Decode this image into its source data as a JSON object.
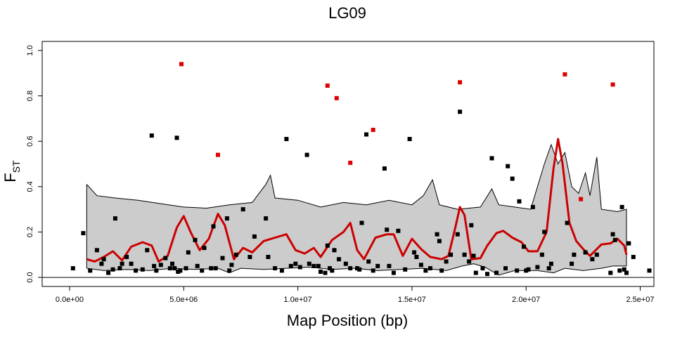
{
  "chart_data": {
    "type": "scatter",
    "title": "LG09",
    "xlabel": "Map Position (bp)",
    "ylabel_main": "F",
    "ylabel_sub": "ST",
    "xlim": [
      -1200000,
      25600000
    ],
    "ylim": [
      -0.04,
      1.04
    ],
    "x_ticks": [
      0,
      5000000,
      10000000,
      15000000,
      20000000,
      25000000
    ],
    "x_tick_labels": [
      "0.0e+00",
      "5.0e+06",
      "1.0e+07",
      "1.5e+07",
      "2.0e+07",
      "2.5e+07"
    ],
    "y_ticks": [
      0.0,
      0.2,
      0.4,
      0.6,
      0.8,
      1.0
    ],
    "y_tick_labels": [
      "0.0",
      "0.2",
      "0.4",
      "0.6",
      "0.8",
      "1.0"
    ],
    "hline": 0,
    "grid": false,
    "colors": {
      "normal": "#000000",
      "outlier": "#dd0000",
      "smooth": "#cc0000",
      "band": "#cccccc"
    },
    "band": {
      "upper": [
        [
          750000,
          0.41
        ],
        [
          1200000,
          0.36
        ],
        [
          2000000,
          0.35
        ],
        [
          3000000,
          0.34
        ],
        [
          4000000,
          0.325
        ],
        [
          5000000,
          0.31
        ],
        [
          6000000,
          0.305
        ],
        [
          7000000,
          0.32
        ],
        [
          8000000,
          0.33
        ],
        [
          8600000,
          0.41
        ],
        [
          8800000,
          0.45
        ],
        [
          9000000,
          0.35
        ],
        [
          10000000,
          0.34
        ],
        [
          11000000,
          0.31
        ],
        [
          12000000,
          0.33
        ],
        [
          13000000,
          0.32
        ],
        [
          14000000,
          0.34
        ],
        [
          15000000,
          0.32
        ],
        [
          15500000,
          0.36
        ],
        [
          15900000,
          0.43
        ],
        [
          16200000,
          0.32
        ],
        [
          17000000,
          0.3
        ],
        [
          18000000,
          0.31
        ],
        [
          18500000,
          0.39
        ],
        [
          18800000,
          0.32
        ],
        [
          19500000,
          0.31
        ],
        [
          20200000,
          0.3
        ],
        [
          20800000,
          0.5
        ],
        [
          21100000,
          0.585
        ],
        [
          21400000,
          0.5
        ],
        [
          21700000,
          0.55
        ],
        [
          22000000,
          0.4
        ],
        [
          22300000,
          0.37
        ],
        [
          22600000,
          0.46
        ],
        [
          22800000,
          0.36
        ],
        [
          23100000,
          0.53
        ],
        [
          23300000,
          0.3
        ],
        [
          24000000,
          0.29
        ],
        [
          24400000,
          0.3
        ]
      ],
      "lower": [
        [
          750000,
          0.04
        ],
        [
          1500000,
          0.03
        ],
        [
          2500000,
          0.035
        ],
        [
          3500000,
          0.03
        ],
        [
          4500000,
          0.04
        ],
        [
          5500000,
          0.035
        ],
        [
          6500000,
          0.04
        ],
        [
          7000000,
          0.02
        ],
        [
          7500000,
          0.04
        ],
        [
          8500000,
          0.035
        ],
        [
          9500000,
          0.04
        ],
        [
          10500000,
          0.045
        ],
        [
          11500000,
          0.035
        ],
        [
          12500000,
          0.04
        ],
        [
          13500000,
          0.03
        ],
        [
          14500000,
          0.035
        ],
        [
          15500000,
          0.04
        ],
        [
          16500000,
          0.03
        ],
        [
          17200000,
          0.05
        ],
        [
          17700000,
          0.06
        ],
        [
          18200000,
          0.045
        ],
        [
          18800000,
          0.01
        ],
        [
          19500000,
          0.03
        ],
        [
          20500000,
          0.03
        ],
        [
          21200000,
          0.02
        ],
        [
          21700000,
          0.04
        ],
        [
          22500000,
          0.03
        ],
        [
          23300000,
          0.04
        ],
        [
          23800000,
          0.05
        ],
        [
          24400000,
          0.05
        ]
      ]
    },
    "smooth": [
      [
        750000,
        0.08
      ],
      [
        1100000,
        0.07
      ],
      [
        1500000,
        0.09
      ],
      [
        1900000,
        0.115
      ],
      [
        2300000,
        0.075
      ],
      [
        2700000,
        0.135
      ],
      [
        3200000,
        0.155
      ],
      [
        3600000,
        0.14
      ],
      [
        3900000,
        0.07
      ],
      [
        4300000,
        0.095
      ],
      [
        4700000,
        0.22
      ],
      [
        5000000,
        0.27
      ],
      [
        5300000,
        0.2
      ],
      [
        5700000,
        0.12
      ],
      [
        6100000,
        0.17
      ],
      [
        6500000,
        0.28
      ],
      [
        6800000,
        0.23
      ],
      [
        7200000,
        0.08
      ],
      [
        7600000,
        0.13
      ],
      [
        8000000,
        0.11
      ],
      [
        8500000,
        0.16
      ],
      [
        9000000,
        0.175
      ],
      [
        9500000,
        0.19
      ],
      [
        9900000,
        0.12
      ],
      [
        10300000,
        0.105
      ],
      [
        10700000,
        0.13
      ],
      [
        11000000,
        0.09
      ],
      [
        11500000,
        0.165
      ],
      [
        12000000,
        0.2
      ],
      [
        12300000,
        0.24
      ],
      [
        12600000,
        0.12
      ],
      [
        12900000,
        0.08
      ],
      [
        13400000,
        0.175
      ],
      [
        13900000,
        0.19
      ],
      [
        14200000,
        0.19
      ],
      [
        14600000,
        0.095
      ],
      [
        15000000,
        0.17
      ],
      [
        15400000,
        0.125
      ],
      [
        15800000,
        0.09
      ],
      [
        16300000,
        0.08
      ],
      [
        16600000,
        0.095
      ],
      [
        16900000,
        0.22
      ],
      [
        17100000,
        0.31
      ],
      [
        17300000,
        0.275
      ],
      [
        17600000,
        0.08
      ],
      [
        18000000,
        0.085
      ],
      [
        18300000,
        0.14
      ],
      [
        18700000,
        0.195
      ],
      [
        19000000,
        0.205
      ],
      [
        19400000,
        0.175
      ],
      [
        19800000,
        0.155
      ],
      [
        20100000,
        0.115
      ],
      [
        20500000,
        0.115
      ],
      [
        20900000,
        0.2
      ],
      [
        21200000,
        0.48
      ],
      [
        21400000,
        0.61
      ],
      [
        21600000,
        0.5
      ],
      [
        21900000,
        0.24
      ],
      [
        22200000,
        0.16
      ],
      [
        22500000,
        0.125
      ],
      [
        22800000,
        0.095
      ],
      [
        23300000,
        0.145
      ],
      [
        23700000,
        0.15
      ],
      [
        24000000,
        0.17
      ],
      [
        24300000,
        0.14
      ],
      [
        24400000,
        0.1
      ]
    ],
    "points_normal": [
      [
        150000,
        0.04
      ],
      [
        600000,
        0.195
      ],
      [
        900000,
        0.03
      ],
      [
        1200000,
        0.12
      ],
      [
        1400000,
        0.06
      ],
      [
        1500000,
        0.08
      ],
      [
        1700000,
        0.02
      ],
      [
        1900000,
        0.035
      ],
      [
        2000000,
        0.26
      ],
      [
        2200000,
        0.04
      ],
      [
        2300000,
        0.06
      ],
      [
        2500000,
        0.09
      ],
      [
        2700000,
        0.06
      ],
      [
        2900000,
        0.03
      ],
      [
        3200000,
        0.035
      ],
      [
        3400000,
        0.12
      ],
      [
        3600000,
        0.625
      ],
      [
        3700000,
        0.05
      ],
      [
        3800000,
        0.03
      ],
      [
        4000000,
        0.055
      ],
      [
        4200000,
        0.085
      ],
      [
        4400000,
        0.04
      ],
      [
        4500000,
        0.06
      ],
      [
        4600000,
        0.04
      ],
      [
        4700000,
        0.615
      ],
      [
        4750000,
        0.025
      ],
      [
        4850000,
        0.03
      ],
      [
        5100000,
        0.04
      ],
      [
        5200000,
        0.11
      ],
      [
        5500000,
        0.165
      ],
      [
        5600000,
        0.05
      ],
      [
        5800000,
        0.03
      ],
      [
        5900000,
        0.13
      ],
      [
        6200000,
        0.04
      ],
      [
        6300000,
        0.225
      ],
      [
        6400000,
        0.04
      ],
      [
        6700000,
        0.085
      ],
      [
        6900000,
        0.26
      ],
      [
        7000000,
        0.03
      ],
      [
        7100000,
        0.055
      ],
      [
        7300000,
        0.1
      ],
      [
        7600000,
        0.3
      ],
      [
        7900000,
        0.09
      ],
      [
        8100000,
        0.18
      ],
      [
        8600000,
        0.26
      ],
      [
        8700000,
        0.09
      ],
      [
        9000000,
        0.04
      ],
      [
        9300000,
        0.03
      ],
      [
        9500000,
        0.61
      ],
      [
        9700000,
        0.05
      ],
      [
        9900000,
        0.06
      ],
      [
        10100000,
        0.045
      ],
      [
        10400000,
        0.54
      ],
      [
        10500000,
        0.06
      ],
      [
        10700000,
        0.05
      ],
      [
        10900000,
        0.05
      ],
      [
        11000000,
        0.025
      ],
      [
        11200000,
        0.02
      ],
      [
        11300000,
        0.14
      ],
      [
        11400000,
        0.04
      ],
      [
        11500000,
        0.03
      ],
      [
        11600000,
        0.12
      ],
      [
        11800000,
        0.08
      ],
      [
        12100000,
        0.06
      ],
      [
        12300000,
        0.04
      ],
      [
        12600000,
        0.04
      ],
      [
        12700000,
        0.035
      ],
      [
        12800000,
        0.24
      ],
      [
        13000000,
        0.63
      ],
      [
        13100000,
        0.07
      ],
      [
        13300000,
        0.03
      ],
      [
        13500000,
        0.05
      ],
      [
        13800000,
        0.48
      ],
      [
        13900000,
        0.21
      ],
      [
        14000000,
        0.05
      ],
      [
        14200000,
        0.02
      ],
      [
        14400000,
        0.205
      ],
      [
        14700000,
        0.035
      ],
      [
        14900000,
        0.61
      ],
      [
        15100000,
        0.11
      ],
      [
        15200000,
        0.09
      ],
      [
        15400000,
        0.055
      ],
      [
        15600000,
        0.03
      ],
      [
        15800000,
        0.04
      ],
      [
        16100000,
        0.19
      ],
      [
        16200000,
        0.16
      ],
      [
        16300000,
        0.03
      ],
      [
        16500000,
        0.07
      ],
      [
        16700000,
        0.1
      ],
      [
        17000000,
        0.19
      ],
      [
        17100000,
        0.73
      ],
      [
        17300000,
        0.1
      ],
      [
        17500000,
        0.07
      ],
      [
        17600000,
        0.23
      ],
      [
        17700000,
        0.095
      ],
      [
        17800000,
        0.02
      ],
      [
        18100000,
        0.04
      ],
      [
        18300000,
        0.015
      ],
      [
        18500000,
        0.525
      ],
      [
        18700000,
        0.02
      ],
      [
        19100000,
        0.04
      ],
      [
        19200000,
        0.49
      ],
      [
        19400000,
        0.435
      ],
      [
        19600000,
        0.03
      ],
      [
        19700000,
        0.335
      ],
      [
        19900000,
        0.135
      ],
      [
        20000000,
        0.03
      ],
      [
        20100000,
        0.035
      ],
      [
        20300000,
        0.31
      ],
      [
        20500000,
        0.045
      ],
      [
        20700000,
        0.1
      ],
      [
        20800000,
        0.2
      ],
      [
        21000000,
        0.04
      ],
      [
        21100000,
        0.06
      ],
      [
        21800000,
        0.24
      ],
      [
        22000000,
        0.06
      ],
      [
        22100000,
        0.1
      ],
      [
        22600000,
        0.11
      ],
      [
        22900000,
        0.08
      ],
      [
        23100000,
        0.1
      ],
      [
        23700000,
        0.02
      ],
      [
        23800000,
        0.19
      ],
      [
        23900000,
        0.165
      ],
      [
        24100000,
        0.03
      ],
      [
        24200000,
        0.31
      ],
      [
        24300000,
        0.035
      ],
      [
        24400000,
        0.02
      ],
      [
        24500000,
        0.15
      ],
      [
        24700000,
        0.09
      ],
      [
        25400000,
        0.03
      ]
    ],
    "points_outlier": [
      [
        4900000,
        0.94
      ],
      [
        6500000,
        0.54
      ],
      [
        11300000,
        0.845
      ],
      [
        11700000,
        0.79
      ],
      [
        12300000,
        0.505
      ],
      [
        13300000,
        0.65
      ],
      [
        17100000,
        0.86
      ],
      [
        21700000,
        0.895
      ],
      [
        22400000,
        0.345
      ],
      [
        23800000,
        0.85
      ]
    ]
  }
}
